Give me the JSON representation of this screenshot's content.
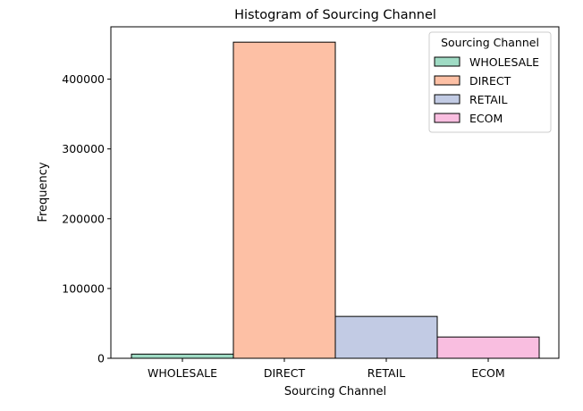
{
  "chart_data": {
    "type": "bar",
    "title": "Histogram of Sourcing Channel",
    "xlabel": "Sourcing Channel",
    "ylabel": "Frequency",
    "categories": [
      "WHOLESALE",
      "DIRECT",
      "RETAIL",
      "ECOM"
    ],
    "values": [
      6000,
      453000,
      60000,
      30500
    ],
    "colors": [
      "#9fdbc4",
      "#fdc0a5",
      "#c2cbe4",
      "#f9bee0"
    ],
    "ylim": [
      0,
      475000
    ],
    "yticks": [
      0,
      100000,
      200000,
      300000,
      400000
    ],
    "ytick_labels": [
      "0",
      "100000",
      "200000",
      "300000",
      "400000"
    ],
    "grid": false,
    "legend": {
      "title": "Sourcing Channel",
      "placement": "top-right",
      "entries": [
        "WHOLESALE",
        "DIRECT",
        "RETAIL",
        "ECOM"
      ]
    }
  }
}
